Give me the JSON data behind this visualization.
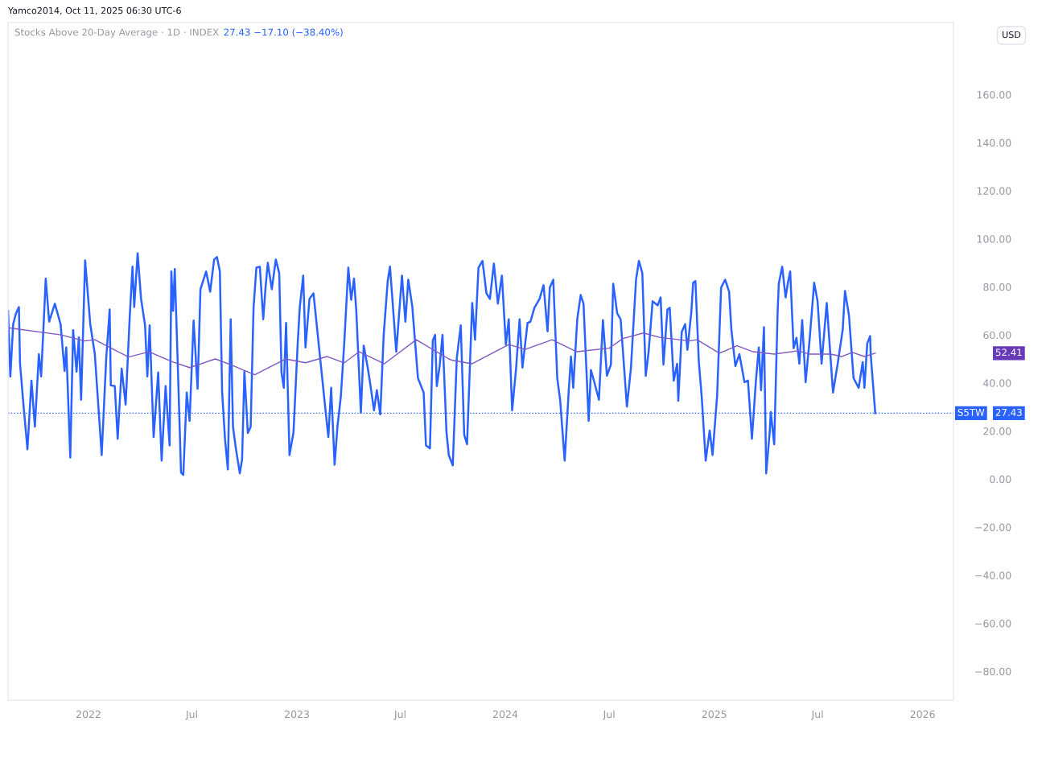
{
  "chart_data": {
    "type": "line",
    "title": "Stocks Above 20-Day Average · 1D · INDEX",
    "subtitle": "27.43 −17.10 (−38.40%)",
    "annotations": [
      "Yamco2014, Oct 11, 2025 06:30 UTC-6",
      "USD",
      "52.41",
      "27.43"
    ],
    "series": [
      {
        "color": "#2962ff",
        "x": [
          "2021-08-13",
          "2021-08-17",
          "2021-08-22",
          "2021-08-27",
          "2021-09-01",
          "2021-09-03",
          "2021-09-09",
          "2021-09-16",
          "2021-09-23",
          "2021-09-29",
          "2021-10-06",
          "2021-10-10",
          "2021-10-16",
          "2021-10-18",
          "2021-10-24",
          "2021-11-03",
          "2021-11-13",
          "2021-11-20",
          "2021-11-23",
          "2021-11-30",
          "2021-12-05",
          "2021-12-11",
          "2021-12-15",
          "2021-12-19",
          "2021-12-26",
          "2022-01-04",
          "2022-01-12",
          "2022-01-24",
          "2022-02-01",
          "2022-02-07",
          "2022-02-09",
          "2022-02-16",
          "2022-02-21",
          "2022-02-28",
          "2022-03-07",
          "2022-03-14",
          "2022-03-19",
          "2022-03-22",
          "2022-03-28",
          "2022-04-03",
          "2022-04-10",
          "2022-04-14",
          "2022-04-18",
          "2022-04-25",
          "2022-05-03",
          "2022-05-09",
          "2022-05-16",
          "2022-05-23",
          "2022-05-26",
          "2022-05-29",
          "2022-06-01",
          "2022-06-06",
          "2022-06-12",
          "2022-06-16",
          "2022-06-22",
          "2022-06-27",
          "2022-07-04",
          "2022-07-11",
          "2022-07-16",
          "2022-07-26",
          "2022-08-02",
          "2022-08-09",
          "2022-08-14",
          "2022-08-19",
          "2022-08-23",
          "2022-08-28",
          "2022-09-02",
          "2022-09-07",
          "2022-09-11",
          "2022-09-16",
          "2022-09-23",
          "2022-09-27",
          "2022-10-01",
          "2022-10-07",
          "2022-10-12",
          "2022-10-17",
          "2022-10-22",
          "2022-10-28",
          "2022-11-03",
          "2022-11-07",
          "2022-11-11",
          "2022-11-18",
          "2022-11-25",
          "2022-12-01",
          "2022-12-05",
          "2022-12-09",
          "2022-12-13",
          "2022-12-19",
          "2022-12-26",
          "2023-01-02",
          "2023-01-06",
          "2023-01-12",
          "2023-01-16",
          "2023-01-23",
          "2023-01-30",
          "2023-02-06",
          "2023-02-16",
          "2023-02-25",
          "2023-03-02",
          "2023-03-08",
          "2023-03-13",
          "2023-03-19",
          "2023-03-25",
          "2023-04-01",
          "2023-04-06",
          "2023-04-11",
          "2023-04-15",
          "2023-04-23",
          "2023-04-28",
          "2023-05-05",
          "2023-05-09",
          "2023-05-16",
          "2023-05-21",
          "2023-05-27",
          "2023-06-02",
          "2023-06-09",
          "2023-06-13",
          "2023-06-17",
          "2023-06-24",
          "2023-07-04",
          "2023-07-10",
          "2023-07-15",
          "2023-07-22",
          "2023-08-01",
          "2023-08-11",
          "2023-08-15",
          "2023-08-22",
          "2023-08-27",
          "2023-08-31",
          "2023-09-03",
          "2023-09-08",
          "2023-09-13",
          "2023-09-20",
          "2023-09-24",
          "2023-10-01",
          "2023-10-08",
          "2023-10-15",
          "2023-10-21",
          "2023-10-26",
          "2023-11-04",
          "2023-11-09",
          "2023-11-15",
          "2023-11-22",
          "2023-11-29",
          "2023-12-05",
          "2023-12-12",
          "2023-12-19",
          "2023-12-26",
          "2024-01-02",
          "2024-01-07",
          "2024-01-13",
          "2024-01-20",
          "2024-01-26",
          "2024-01-31",
          "2024-02-09",
          "2024-02-14",
          "2024-02-21",
          "2024-03-01",
          "2024-03-08",
          "2024-03-15",
          "2024-03-19",
          "2024-03-25",
          "2024-04-01",
          "2024-04-06",
          "2024-04-14",
          "2024-04-21",
          "2024-04-25",
          "2024-04-29",
          "2024-05-06",
          "2024-05-12",
          "2024-05-17",
          "2024-05-26",
          "2024-05-30",
          "2024-06-05",
          "2024-06-13",
          "2024-06-20",
          "2024-06-27",
          "2024-07-04",
          "2024-07-08",
          "2024-07-15",
          "2024-07-21",
          "2024-08-01",
          "2024-08-08",
          "2024-08-17",
          "2024-08-22",
          "2024-08-28",
          "2024-09-03",
          "2024-09-08",
          "2024-09-15",
          "2024-09-24",
          "2024-09-29",
          "2024-10-04",
          "2024-10-11",
          "2024-10-15",
          "2024-10-22",
          "2024-10-28",
          "2024-10-30",
          "2024-11-05",
          "2024-11-11",
          "2024-11-15",
          "2024-11-22",
          "2024-11-25",
          "2024-11-29",
          "2024-12-05",
          "2024-12-10",
          "2024-12-17",
          "2024-12-24",
          "2024-12-29",
          "2025-01-06",
          "2025-01-13",
          "2025-01-20",
          "2025-01-27",
          "2025-01-31",
          "2025-02-07",
          "2025-02-14",
          "2025-02-23",
          "2025-03-01",
          "2025-03-08",
          "2025-03-15",
          "2025-03-20",
          "2025-03-24",
          "2025-03-29",
          "2025-04-02",
          "2025-04-08",
          "2025-04-10",
          "2025-04-16",
          "2025-04-22",
          "2025-04-24",
          "2025-04-30",
          "2025-05-06",
          "2025-05-10",
          "2025-05-14",
          "2025-05-20",
          "2025-05-25",
          "2025-05-30",
          "2025-06-04",
          "2025-06-10",
          "2025-06-17",
          "2025-06-25",
          "2025-07-01",
          "2025-07-08",
          "2025-07-17",
          "2025-07-28",
          "2025-08-05",
          "2025-08-14",
          "2025-08-18",
          "2025-08-25",
          "2025-09-02",
          "2025-09-11",
          "2025-09-18",
          "2025-09-21",
          "2025-09-26",
          "2025-10-01",
          "2025-10-02",
          "2025-10-10"
        ],
        "values": [
          70,
          42.7,
          64.5,
          69,
          71.6,
          48,
          31,
          12.4,
          41,
          21.8,
          52,
          42.7,
          73,
          83.4,
          65.5,
          73,
          64.5,
          45,
          54.8,
          9,
          62,
          44.7,
          59,
          33,
          91,
          64.5,
          52,
          10,
          50.4,
          70.6,
          39,
          38.7,
          16.8,
          46,
          31,
          67,
          88.4,
          71.6,
          94,
          75,
          64,
          42.7,
          64,
          17.5,
          44.4,
          7.7,
          38.7,
          14,
          86.4,
          70,
          87.4,
          49.7,
          2.7,
          1.7,
          36,
          24.2,
          66,
          37.6,
          79,
          86.4,
          78,
          91.4,
          92.4,
          86.4,
          36.3,
          16.8,
          4,
          66.5,
          21.8,
          12.8,
          2.4,
          8.4,
          44.7,
          19.2,
          21.8,
          71.3,
          88,
          88.4,
          66.5,
          79.7,
          90,
          79,
          91.4,
          85.7,
          44.4,
          38,
          65,
          10,
          19.5,
          54.8,
          71.6,
          84.7,
          54.8,
          75,
          77.3,
          61.2,
          38,
          17.5,
          38,
          6,
          21.8,
          34.6,
          57,
          88,
          74.6,
          83.4,
          70,
          27.6,
          55.5,
          46.4,
          40.3,
          28.6,
          37,
          26.9,
          60,
          82.4,
          88.4,
          75.6,
          53,
          84.7,
          65.5,
          83,
          72,
          42,
          36,
          14,
          12.8,
          57.8,
          60,
          38.7,
          47,
          60,
          19.5,
          10,
          5.7,
          50.4,
          64,
          18.5,
          14.5,
          73.3,
          58,
          88,
          90.8,
          77.3,
          75,
          89.7,
          73,
          84.7,
          56,
          66.5,
          28.6,
          46.4,
          66.5,
          46.4,
          65,
          65.5,
          71.3,
          75,
          80.7,
          61.5,
          79.7,
          83,
          42,
          33,
          7.7,
          36.3,
          51,
          38,
          66.5,
          76.6,
          73,
          24.2,
          45.4,
          40.3,
          33,
          66.2,
          43,
          47.7,
          81.3,
          69,
          66.5,
          30.2,
          46,
          83,
          90.8,
          85.7,
          43,
          53,
          74,
          72.3,
          75.6,
          47.7,
          70.6,
          71.3,
          41,
          48,
          32.6,
          61.2,
          64.5,
          53.8,
          70,
          81.7,
          82.4,
          48.7,
          34.3,
          7.7,
          20.2,
          10,
          34.6,
          79.7,
          83,
          78,
          62.2,
          47,
          52,
          40.3,
          41,
          16.8,
          41,
          54.8,
          37,
          63.2,
          2.4,
          19.2,
          27.9,
          14.5,
          69.6,
          81.3,
          88.4,
          75.6,
          81.7,
          86.4,
          54.5,
          58.8,
          48,
          66.2,
          40.3,
          58,
          81.7,
          74,
          48,
          73.3,
          36,
          47.7,
          62.2,
          78.3,
          68,
          42,
          38,
          48.7,
          38,
          56.5,
          59.5,
          52,
          27.43
        ]
      },
      {
        "color": "#7e57c2",
        "x": [
          "2021-08-13",
          "2021-11-14",
          "2021-12-25",
          "2022-01-12",
          "2022-03-12",
          "2022-04-17",
          "2022-05-29",
          "2022-06-27",
          "2022-08-11",
          "2022-09-06",
          "2022-10-19",
          "2022-12-12",
          "2023-01-16",
          "2023-02-23",
          "2023-03-25",
          "2023-04-20",
          "2023-06-03",
          "2023-07-29",
          "2023-09-24",
          "2023-10-01",
          "2023-11-04",
          "2024-01-07",
          "2024-02-05",
          "2024-03-23",
          "2024-05-05",
          "2024-07-01",
          "2024-07-25",
          "2024-08-30",
          "2024-09-27",
          "2024-11-18",
          "2024-12-02",
          "2025-01-10",
          "2025-02-10",
          "2025-03-10",
          "2025-04-16",
          "2025-05-28",
          "2025-06-17",
          "2025-07-24",
          "2025-08-12",
          "2025-08-31",
          "2025-09-21",
          "2025-10-10"
        ],
        "values": [
          63,
          60,
          57.5,
          58,
          50.8,
          53,
          48.7,
          46.4,
          50,
          47.7,
          43.4,
          50,
          48.4,
          51,
          48.4,
          53,
          48,
          58,
          50,
          49.4,
          48,
          56,
          54,
          58,
          53,
          54.5,
          58.5,
          60.8,
          59,
          57.5,
          58,
          52.4,
          55.5,
          53,
          52,
          53.4,
          52,
          52,
          51,
          52.7,
          51,
          52.41
        ]
      }
    ],
    "xlim": [
      "2021-08-13",
      "2026-02-24"
    ],
    "xticks": [
      {
        "value": "2022-01-01",
        "label": "2022"
      },
      {
        "value": "2022-07-01",
        "label": "Jul"
      },
      {
        "value": "2023-01-01",
        "label": "2023"
      },
      {
        "value": "2023-07-01",
        "label": "Jul"
      },
      {
        "value": "2024-01-01",
        "label": "2024"
      },
      {
        "value": "2024-07-01",
        "label": "Jul"
      },
      {
        "value": "2025-01-01",
        "label": "2025"
      },
      {
        "value": "2025-07-01",
        "label": "Jul"
      },
      {
        "value": "2026-01-01",
        "label": "2026"
      }
    ],
    "ylim": [
      -92,
      190
    ],
    "yticks": [
      {
        "value": -80,
        "label": "−80.00"
      },
      {
        "value": -60,
        "label": "−60.00"
      },
      {
        "value": -40,
        "label": "−40.00"
      },
      {
        "value": -20,
        "label": "−20.00"
      },
      {
        "value": 0,
        "label": "0.00"
      },
      {
        "value": 20,
        "label": "20.00"
      },
      {
        "value": 40,
        "label": "40.00"
      },
      {
        "value": 60,
        "label": "60.00"
      },
      {
        "value": 80,
        "label": "80.00"
      },
      {
        "value": 100,
        "label": "100.00"
      },
      {
        "value": 120,
        "label": "120.00"
      },
      {
        "value": 140,
        "label": "140.00"
      },
      {
        "value": 160,
        "label": "160.00"
      }
    ],
    "ref_lines": [
      {
        "axis": "y",
        "value": 27.43,
        "label": "S5TW",
        "color": "#2962ff",
        "line_style": "dotted"
      }
    ],
    "grid": false,
    "legend": false,
    "marker": "none",
    "line_style": "solid"
  }
}
